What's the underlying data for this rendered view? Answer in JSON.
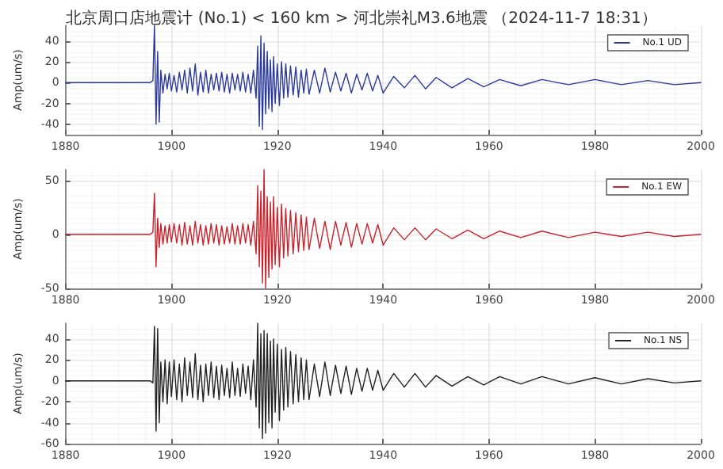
{
  "chart_data": [
    {
      "type": "line",
      "title": "北京周口店地震计 (No.1) < 160 km > 河北崇礼M3.6地震 （2024-11-7 18:31）",
      "ylabel": "Amp(um/s)",
      "legend": "top right",
      "grid": true,
      "marker": "none",
      "line_style": "solid",
      "xlim": [
        1880,
        2000
      ],
      "xticks": [
        1880,
        1900,
        1920,
        1940,
        1960,
        1980,
        2000
      ],
      "ylim": [
        -50,
        55
      ],
      "yticks": [
        -40,
        -20,
        0,
        20,
        40
      ],
      "x": [
        1880,
        1896,
        1896.5,
        1896.8,
        1897.1,
        1897.4,
        1897.7,
        1898,
        1898.4,
        1898.8,
        1899.2,
        1899.6,
        1900,
        1900.5,
        1901,
        1901.5,
        1902,
        1902.5,
        1903,
        1903.5,
        1904,
        1904.5,
        1905,
        1905.5,
        1906,
        1906.5,
        1907,
        1907.5,
        1908,
        1908.5,
        1909,
        1909.5,
        1910,
        1910.5,
        1911,
        1911.5,
        1912,
        1912.5,
        1913,
        1913.5,
        1914,
        1914.5,
        1915,
        1915.5,
        1916,
        1916.3,
        1916.6,
        1916.9,
        1917.2,
        1917.5,
        1917.8,
        1918.1,
        1918.4,
        1918.7,
        1919,
        1919.3,
        1919.6,
        1920,
        1920.4,
        1920.8,
        1921.2,
        1921.6,
        1922,
        1922.5,
        1923,
        1923.5,
        1924,
        1924.5,
        1925,
        1925.5,
        1926,
        1927,
        1928,
        1929,
        1930,
        1931,
        1932,
        1933,
        1934,
        1935,
        1936,
        1937,
        1938,
        1939,
        1940,
        1942,
        1944,
        1946,
        1948,
        1950,
        1953,
        1956,
        1959,
        1962,
        1966,
        1970,
        1975,
        1980,
        1985,
        1990,
        1995,
        2000
      ],
      "series": [
        {
          "name": "No.1 UD",
          "color": "#2b3a9a",
          "values": [
            0,
            0,
            2,
            55,
            -40,
            30,
            -38,
            12,
            -10,
            8,
            -6,
            9,
            -8,
            7,
            -9,
            10,
            -7,
            12,
            -10,
            14,
            -8,
            18,
            -12,
            10,
            -9,
            12,
            -10,
            8,
            -7,
            9,
            -8,
            10,
            -9,
            8,
            -10,
            9,
            -7,
            8,
            -8,
            10,
            -9,
            8,
            -10,
            12,
            -15,
            35,
            -42,
            45,
            -45,
            38,
            -30,
            30,
            -25,
            22,
            -28,
            25,
            -20,
            18,
            -22,
            20,
            -15,
            18,
            -14,
            16,
            -12,
            15,
            -14,
            12,
            -10,
            13,
            -11,
            12,
            -10,
            14,
            -9,
            10,
            -8,
            9,
            -10,
            8,
            -7,
            9,
            -8,
            7,
            -10,
            6,
            -5,
            7,
            -6,
            5,
            -5,
            4,
            -4,
            3,
            -3,
            3,
            -2,
            3,
            -2,
            2,
            -2,
            0
          ]
        }
      ]
    },
    {
      "type": "line",
      "ylabel": "Amp(um/s)",
      "legend": "top right",
      "grid": true,
      "marker": "none",
      "line_style": "solid",
      "xlim": [
        1880,
        2000
      ],
      "xticks": [
        1880,
        1900,
        1920,
        1940,
        1960,
        1980,
        2000
      ],
      "ylim": [
        -50,
        60
      ],
      "yticks": [
        -50,
        0,
        50
      ],
      "x": [
        1880,
        1896,
        1896.5,
        1896.8,
        1897.1,
        1897.4,
        1897.7,
        1898,
        1898.4,
        1898.8,
        1899.2,
        1899.6,
        1900,
        1900.5,
        1901,
        1901.5,
        1902,
        1902.5,
        1903,
        1903.5,
        1904,
        1904.5,
        1905,
        1905.5,
        1906,
        1906.5,
        1907,
        1907.5,
        1908,
        1908.5,
        1909,
        1909.5,
        1910,
        1910.5,
        1911,
        1911.5,
        1912,
        1912.5,
        1913,
        1913.5,
        1914,
        1914.5,
        1915,
        1915.5,
        1916,
        1916.3,
        1916.6,
        1916.9,
        1917.2,
        1917.5,
        1917.8,
        1918.1,
        1918.4,
        1918.7,
        1919,
        1919.3,
        1919.6,
        1920,
        1920.4,
        1920.8,
        1921.2,
        1921.6,
        1922,
        1922.5,
        1923,
        1923.5,
        1924,
        1924.5,
        1925,
        1925.5,
        1926,
        1927,
        1928,
        1929,
        1930,
        1931,
        1932,
        1933,
        1934,
        1935,
        1936,
        1937,
        1938,
        1939,
        1940,
        1942,
        1944,
        1946,
        1948,
        1950,
        1953,
        1956,
        1959,
        1962,
        1966,
        1970,
        1975,
        1980,
        1985,
        1990,
        1995,
        2000
      ],
      "series": [
        {
          "name": "No.1 EW",
          "color": "#c8232c",
          "values": [
            0,
            0,
            2,
            38,
            -30,
            15,
            -12,
            10,
            -9,
            8,
            -8,
            9,
            -7,
            10,
            -8,
            9,
            -10,
            11,
            -9,
            8,
            -10,
            12,
            -8,
            9,
            -10,
            8,
            -9,
            10,
            -8,
            9,
            -10,
            8,
            -9,
            7,
            -8,
            10,
            -9,
            8,
            -9,
            10,
            -8,
            9,
            -10,
            12,
            -18,
            45,
            -30,
            40,
            -45,
            60,
            -50,
            35,
            -40,
            30,
            -32,
            35,
            -28,
            25,
            -30,
            28,
            -22,
            24,
            -20,
            22,
            -18,
            20,
            -16,
            18,
            -15,
            16,
            -14,
            15,
            -13,
            12,
            -14,
            12,
            -10,
            11,
            -12,
            10,
            -9,
            10,
            -8,
            9,
            -10,
            6,
            -5,
            6,
            -5,
            5,
            -4,
            4,
            -4,
            3,
            -3,
            3,
            -3,
            2,
            -2,
            2,
            -2,
            0
          ]
        }
      ]
    },
    {
      "type": "line",
      "ylabel": "Amp(um/s)",
      "legend": "top right",
      "grid": true,
      "marker": "none",
      "line_style": "solid",
      "xlim": [
        1880,
        2000
      ],
      "xticks": [
        1880,
        1900,
        1920,
        1940,
        1960,
        1980,
        2000
      ],
      "ylim": [
        -60,
        55
      ],
      "yticks": [
        -60,
        -40,
        -20,
        0,
        20,
        40
      ],
      "x": [
        1880,
        1896,
        1896.5,
        1896.8,
        1897.1,
        1897.4,
        1897.7,
        1898,
        1898.4,
        1898.8,
        1899.2,
        1899.6,
        1900,
        1900.5,
        1901,
        1901.5,
        1902,
        1902.5,
        1903,
        1903.5,
        1904,
        1904.5,
        1905,
        1905.5,
        1906,
        1906.5,
        1907,
        1907.5,
        1908,
        1908.5,
        1909,
        1909.5,
        1910,
        1910.5,
        1911,
        1911.5,
        1912,
        1912.5,
        1913,
        1913.5,
        1914,
        1914.5,
        1915,
        1915.5,
        1916,
        1916.3,
        1916.6,
        1916.9,
        1917.2,
        1917.5,
        1917.8,
        1918.1,
        1918.4,
        1918.7,
        1919,
        1919.3,
        1919.6,
        1920,
        1920.4,
        1920.8,
        1921.2,
        1921.6,
        1922,
        1922.5,
        1923,
        1923.5,
        1924,
        1924.5,
        1925,
        1925.5,
        1926,
        1927,
        1928,
        1929,
        1930,
        1931,
        1932,
        1933,
        1934,
        1935,
        1936,
        1937,
        1938,
        1939,
        1940,
        1942,
        1944,
        1946,
        1948,
        1950,
        1953,
        1956,
        1959,
        1962,
        1966,
        1970,
        1975,
        1980,
        1985,
        1990,
        1995,
        2000
      ],
      "series": [
        {
          "name": "No.1 NS",
          "color": "#222222",
          "values": [
            0,
            0,
            -2,
            52,
            -48,
            50,
            -40,
            18,
            -20,
            20,
            -22,
            18,
            -15,
            20,
            -18,
            16,
            -20,
            22,
            -14,
            18,
            -16,
            26,
            -18,
            15,
            -20,
            16,
            -14,
            18,
            -16,
            14,
            -18,
            15,
            -14,
            12,
            -16,
            18,
            -14,
            12,
            -15,
            16,
            -12,
            14,
            -18,
            20,
            -25,
            55,
            -45,
            45,
            -55,
            48,
            -50,
            45,
            -40,
            38,
            -45,
            40,
            -30,
            35,
            -38,
            30,
            -28,
            32,
            -25,
            28,
            -22,
            25,
            -20,
            22,
            -18,
            20,
            -18,
            16,
            -15,
            18,
            -14,
            15,
            -12,
            14,
            -13,
            12,
            -10,
            12,
            -9,
            10,
            -9,
            7,
            -6,
            7,
            -6,
            5,
            -5,
            4,
            -4,
            4,
            -3,
            4,
            -3,
            3,
            -3,
            2,
            -2,
            0
          ]
        }
      ]
    }
  ]
}
